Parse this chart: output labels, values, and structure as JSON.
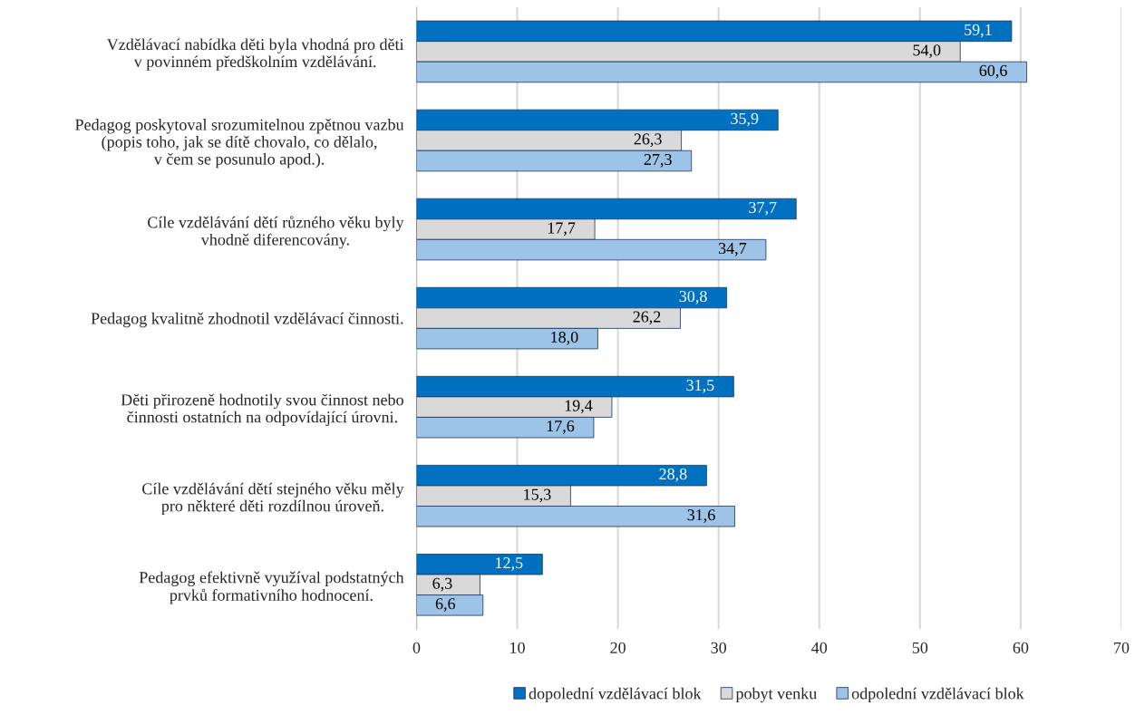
{
  "chart_data": {
    "type": "bar",
    "orientation": "horizontal",
    "categories": [
      "Vzdělávací nabídka děti byla vhodná pro děti\nv povinném předškolním vzdělávání.",
      "Pedagog poskytoval srozumitelnou zpětnou vazbu\n(popis toho, jak se dítě chovalo, co dělalo,\nv čem se posunulo apod.).",
      "Cíle vzdělávání dětí různého věku byly\nvhodně diferencovány.",
      "Pedagog kvalitně zhodnotil vzdělávací činnosti.",
      "Děti přirozeně hodnotily svou činnost nebo\nčinnosti ostatních na odpovídající úrovni.",
      "Cíle vzdělávání dětí stejného věku měly\npro některé děti rozdílnou úroveň.",
      "Pedagog efektivně využíval podstatných\nprvků formativního hodnocení."
    ],
    "series": [
      {
        "name": "dopolední vzdělávací blok",
        "color": "#0070c0",
        "values": [
          59.1,
          35.9,
          37.7,
          30.8,
          31.5,
          28.8,
          12.5
        ],
        "value_labels": [
          "59,1",
          "35,9",
          "37,7",
          "30,8",
          "31,5",
          "28,8",
          "12,5"
        ]
      },
      {
        "name": "pobyt venku",
        "color": "#d9d9d9",
        "values": [
          54.0,
          26.3,
          17.7,
          26.2,
          19.4,
          15.3,
          6.3
        ],
        "value_labels": [
          "54,0",
          "26,3",
          "17,7",
          "26,2",
          "19,4",
          "15,3",
          "6,3"
        ]
      },
      {
        "name": "odpolední vzdělávací blok",
        "color": "#9dc3e6",
        "values": [
          60.6,
          27.3,
          34.7,
          18.0,
          17.6,
          31.6,
          6.6
        ],
        "value_labels": [
          "60,6",
          "27,3",
          "34,7",
          "18,0",
          "17,6",
          "31,6",
          "6,6"
        ]
      }
    ],
    "xlim": [
      0,
      70
    ],
    "xticks": [
      0,
      10,
      20,
      30,
      40,
      50,
      60,
      70
    ],
    "grid": "x",
    "legend": "bottom"
  }
}
